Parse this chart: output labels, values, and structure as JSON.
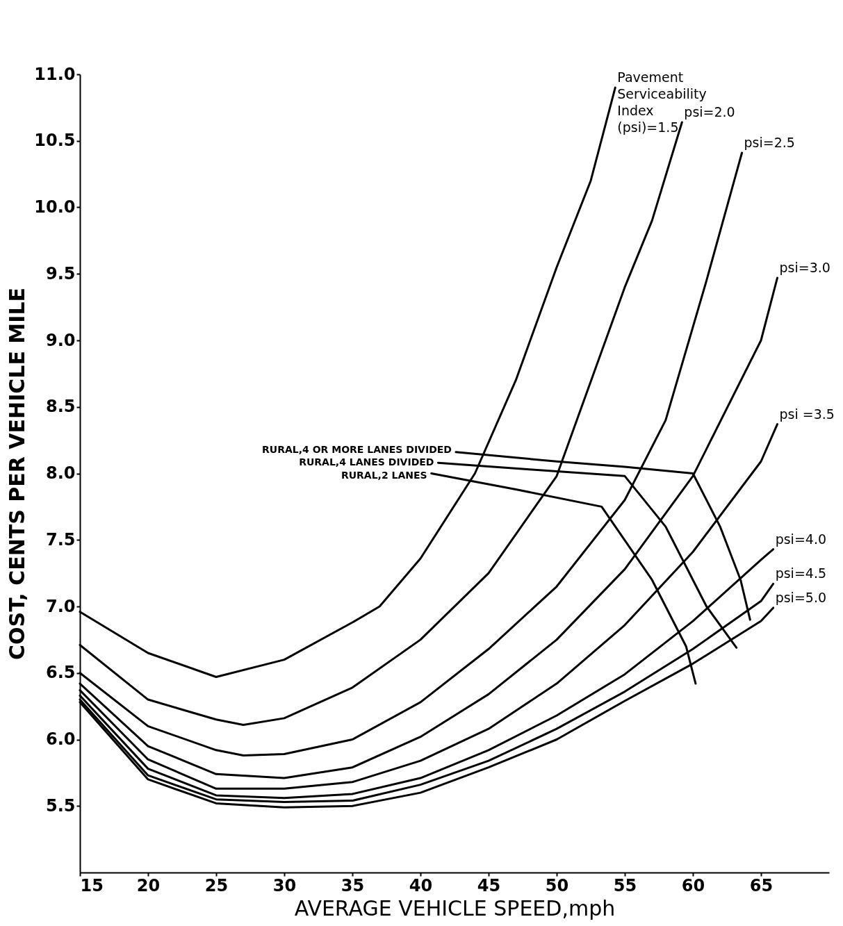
{
  "chart_data": {
    "type": "line",
    "xlabel": "AVERAGE VEHICLE SPEED,mph",
    "ylabel": "COST, CENTS PER VEHICLE MILE",
    "xlim": [
      15,
      70
    ],
    "xticks": [
      15,
      20,
      25,
      30,
      35,
      40,
      45,
      50,
      55,
      60,
      65
    ],
    "ylim": [
      5,
      11
    ],
    "yticks": [
      {
        "value": 5.5,
        "label": "5.5"
      },
      {
        "value": 6,
        "label": "6.0"
      },
      {
        "value": 6.5,
        "label": "6.5"
      },
      {
        "value": 7,
        "label": "7.0"
      },
      {
        "value": 7.5,
        "label": "7.5"
      },
      {
        "value": 8,
        "label": "8.0"
      },
      {
        "value": 8.5,
        "label": "8.5"
      },
      {
        "value": 9,
        "label": "9.0"
      },
      {
        "value": 9.5,
        "label": "9.5"
      },
      {
        "value": 10,
        "label": "10.0"
      },
      {
        "value": 10.5,
        "label": "10.5"
      },
      {
        "value": 11,
        "label": "11.0"
      }
    ],
    "grid": false,
    "legend": false,
    "marker": "none",
    "line_style": "solid",
    "series": [
      {
        "name": "Pavement Serviceability Index (psi)=1.5",
        "color": "#000000",
        "x": [
          15,
          20,
          25,
          30,
          35,
          37,
          40,
          44,
          47,
          50,
          52.5,
          54.3
        ],
        "values": [
          6.96,
          6.65,
          6.47,
          6.6,
          6.88,
          7.0,
          7.36,
          8.0,
          8.7,
          9.55,
          10.2,
          10.9
        ]
      },
      {
        "name": "psi=2.0",
        "color": "#000000",
        "x": [
          15,
          20,
          25,
          27,
          30,
          35,
          40,
          45,
          50,
          55,
          57,
          59.2
        ],
        "values": [
          6.71,
          6.3,
          6.15,
          6.11,
          6.16,
          6.39,
          6.75,
          7.25,
          7.98,
          9.4,
          9.9,
          10.64
        ]
      },
      {
        "name": "psi=2.5",
        "color": "#000000",
        "x": [
          15,
          20,
          25,
          27,
          30,
          35,
          40,
          45,
          50,
          55,
          58,
          61,
          63.6
        ],
        "values": [
          6.5,
          6.1,
          5.92,
          5.88,
          5.89,
          6.0,
          6.28,
          6.68,
          7.15,
          7.8,
          8.4,
          9.45,
          10.41
        ]
      },
      {
        "name": "psi=3.0",
        "color": "#000000",
        "x": [
          15,
          20,
          25,
          30,
          35,
          40,
          45,
          50,
          55,
          60,
          65,
          66.2
        ],
        "values": [
          6.42,
          5.95,
          5.74,
          5.71,
          5.79,
          6.02,
          6.34,
          6.75,
          7.28,
          7.98,
          9.0,
          9.47
        ]
      },
      {
        "name": "psi =3.5",
        "color": "#000000",
        "x": [
          15,
          20,
          25,
          30,
          35,
          40,
          45,
          50,
          55,
          60,
          65,
          66.2
        ],
        "values": [
          6.37,
          5.85,
          5.63,
          5.63,
          5.68,
          5.84,
          6.08,
          6.42,
          6.86,
          7.41,
          8.09,
          8.37
        ]
      },
      {
        "name": "psi=4.0",
        "color": "#000000",
        "x": [
          15,
          20,
          25,
          30,
          35,
          40,
          45,
          50,
          55,
          60,
          65,
          65.9
        ],
        "values": [
          6.33,
          5.78,
          5.58,
          5.56,
          5.59,
          5.71,
          5.92,
          6.18,
          6.49,
          6.89,
          7.35,
          7.43
        ]
      },
      {
        "name": "psi=4.5",
        "color": "#000000",
        "x": [
          15,
          20,
          25,
          30,
          35,
          40,
          45,
          50,
          55,
          60,
          65,
          65.9
        ],
        "values": [
          6.3,
          5.73,
          5.55,
          5.53,
          5.54,
          5.66,
          5.84,
          6.08,
          6.36,
          6.68,
          7.04,
          7.17
        ]
      },
      {
        "name": "psi=5.0",
        "color": "#000000",
        "x": [
          15,
          20,
          25,
          30,
          35,
          40,
          45,
          50,
          55,
          60,
          65,
          65.9
        ],
        "values": [
          6.28,
          5.7,
          5.52,
          5.49,
          5.5,
          5.6,
          5.79,
          6.0,
          6.29,
          6.57,
          6.89,
          6.99
        ]
      },
      {
        "name": "RURAL,4 OR MORE LANES DIVIDED",
        "color": "#000000",
        "x": [
          42.6,
          50,
          55,
          60,
          62,
          63.5,
          64.2
        ],
        "values": [
          8.16,
          8.09,
          8.05,
          8.0,
          7.6,
          7.2,
          6.9
        ]
      },
      {
        "name": "RURAL,4 LANES DIVIDED",
        "color": "#000000",
        "x": [
          41.3,
          48,
          55,
          58,
          61,
          63.2
        ],
        "values": [
          8.08,
          8.03,
          7.98,
          7.6,
          7.0,
          6.69
        ]
      },
      {
        "name": "RURAL,2 LANES",
        "color": "#000000",
        "x": [
          40.8,
          47,
          53.3,
          57,
          59.5,
          60.2
        ],
        "values": [
          8.0,
          7.88,
          7.75,
          7.2,
          6.7,
          6.42
        ]
      }
    ]
  }
}
